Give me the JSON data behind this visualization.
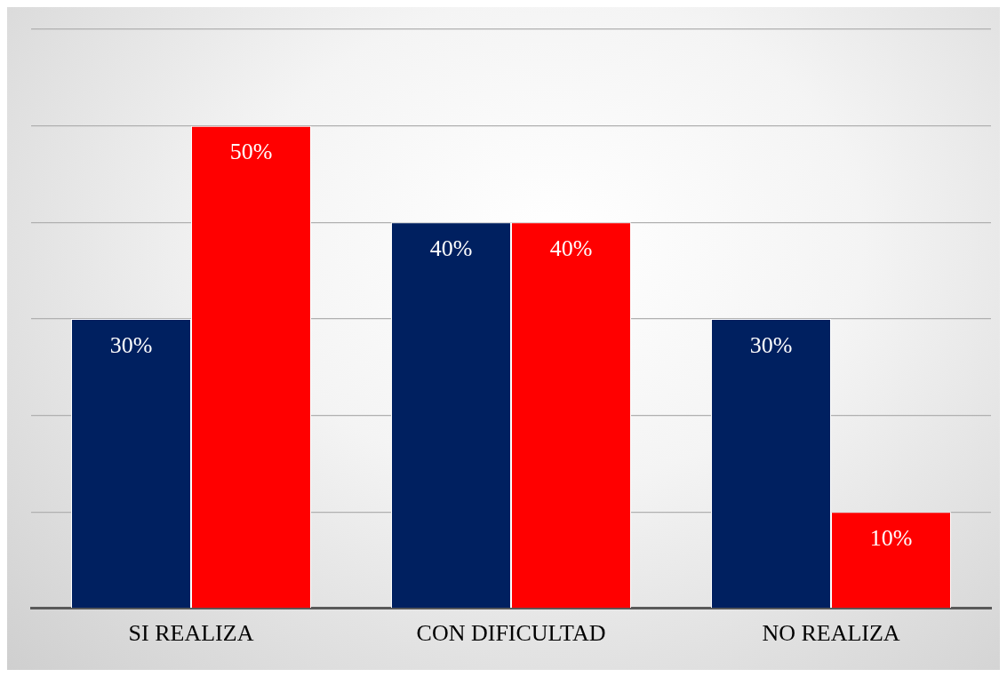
{
  "chart_data": {
    "type": "bar",
    "categories": [
      "SI REALIZA",
      "CON DIFICULTAD",
      "NO REALIZA"
    ],
    "series": [
      {
        "color": "#002060",
        "values": [
          30,
          40,
          30
        ],
        "value_labels": [
          "30%",
          "40%",
          "30%"
        ]
      },
      {
        "color": "#ff0000",
        "values": [
          50,
          40,
          10
        ],
        "value_labels": [
          "50%",
          "40%",
          "10%"
        ]
      }
    ],
    "ylim": [
      0,
      60
    ],
    "yticks": [
      {
        "value": 0,
        "label": null
      },
      {
        "value": 10,
        "label": null
      },
      {
        "value": 20,
        "label": null
      },
      {
        "value": 30,
        "label": null
      },
      {
        "value": 40,
        "label": null
      },
      {
        "value": 50,
        "label": null
      },
      {
        "value": 60,
        "label": null
      }
    ],
    "grid": "y",
    "tick_labels": "x",
    "legend": false
  }
}
